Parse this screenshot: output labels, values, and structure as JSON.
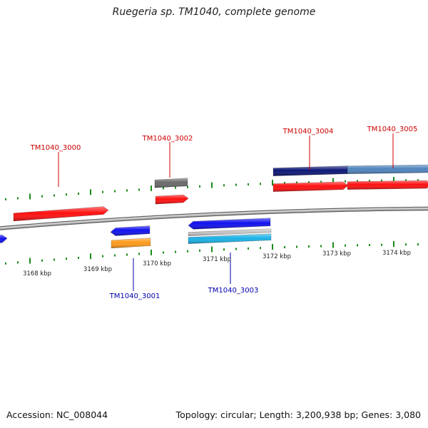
{
  "title": "Ruegeria sp. TM1040, complete genome",
  "accession_label": "Accession: NC_008044",
  "summary_label": "Topology: circular; Length: 3,200,938 bp; Genes: 3,080",
  "colors": {
    "tick": "#1a8a1a",
    "backbone": "#8a8a8a",
    "label_forward": "#cc0000",
    "label_reverse": "#0000aa",
    "red": "#ff1010",
    "blue": "#1010ee",
    "navy": "#0b1675",
    "steel": "#4f84bd",
    "gray": "#6a6a6a",
    "silver": "#c4c4c4",
    "cyan": "#1ab2e6",
    "orange": "#ff9a1a"
  },
  "scale_labels": [
    "3168 kbp",
    "3169 kbp",
    "3170 kbp",
    "3171 kbp",
    "3172 kbp",
    "3173 kbp",
    "3174 kbp"
  ],
  "genes": [
    {
      "locus": "TM1040_3000",
      "strand": "forward"
    },
    {
      "locus": "TM1040_3001",
      "strand": "reverse"
    },
    {
      "locus": "TM1040_3002",
      "strand": "forward"
    },
    {
      "locus": "TM1040_3003",
      "strand": "reverse"
    },
    {
      "locus": "TM1040_3004",
      "strand": "forward"
    },
    {
      "locus": "TM1040_3005",
      "strand": "forward"
    }
  ]
}
